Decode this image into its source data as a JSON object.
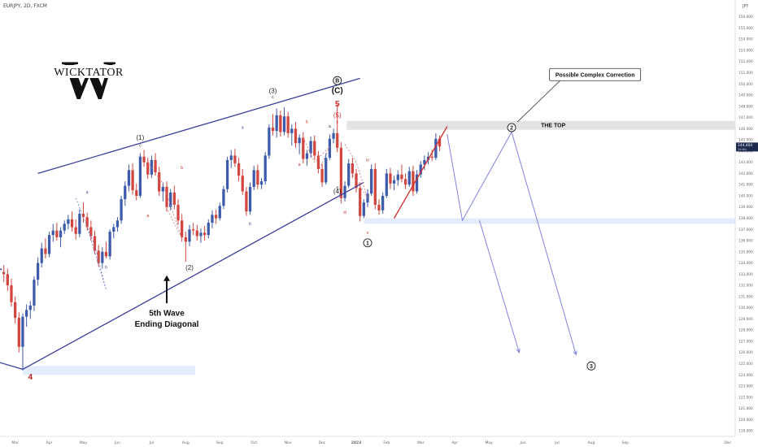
{
  "header": {
    "symbol_line": "EURJPY, 2D, FXCM",
    "currency": "JPY"
  },
  "logo": {
    "text": "WICKTATOR",
    "monogram": "W"
  },
  "chart_data": {
    "type": "candlestick",
    "xlabel": "",
    "ylabel": "",
    "ylim": [
      118.5,
      157.5
    ],
    "y_ticks": [
      119,
      120,
      121,
      122,
      123,
      124,
      125,
      126,
      127,
      128,
      129,
      130,
      131,
      132,
      133,
      134,
      135,
      136,
      137,
      138,
      139,
      140,
      141,
      142,
      143,
      144,
      145,
      146,
      147,
      148,
      149,
      150,
      151,
      152,
      153,
      154,
      155,
      156
    ],
    "x_tick_labels": [
      "Mar",
      "Apr",
      "May",
      "Jun",
      "Jul",
      "Aug",
      "Sep",
      "Oct",
      "Nov",
      "Dec",
      "2023",
      "Feb",
      "Mar",
      "Apr",
      "May",
      "Jun",
      "Jul",
      "Aug",
      "Sep",
      "Dec"
    ],
    "x_tick_slots": [
      0,
      18,
      36,
      54,
      72,
      90,
      108,
      126,
      144,
      162,
      180,
      196,
      214,
      232,
      250,
      268,
      286,
      304,
      322,
      376
    ],
    "x_range": [
      -8,
      380
    ],
    "price_marker": {
      "value": "144.404",
      "sub": "34:8h",
      "level": 144.4,
      "color": "#1b2a4e"
    },
    "candles": [
      [
        -6,
        133.2,
        133.8,
        132.3,
        133.0
      ],
      [
        -4,
        133.0,
        133.5,
        131.5,
        132.0
      ],
      [
        -2,
        132.0,
        132.6,
        130.1,
        130.5
      ],
      [
        0,
        130.5,
        131.0,
        128.6,
        129.1
      ],
      [
        2,
        129.1,
        129.6,
        126.0,
        126.5
      ],
      [
        4,
        126.5,
        129.5,
        124.4,
        129.2
      ],
      [
        6,
        129.2,
        130.3,
        128.3,
        129.8
      ],
      [
        8,
        129.8,
        130.6,
        129.0,
        130.2
      ],
      [
        10,
        130.2,
        132.8,
        129.7,
        132.5
      ],
      [
        12,
        132.5,
        134.5,
        132.0,
        134.0
      ],
      [
        14,
        134.0,
        135.8,
        133.6,
        135.3
      ],
      [
        16,
        135.3,
        136.2,
        134.4,
        134.8
      ],
      [
        18,
        134.8,
        136.8,
        134.5,
        136.5
      ],
      [
        20,
        136.5,
        137.5,
        135.9,
        136.9
      ],
      [
        22,
        136.9,
        137.6,
        136.0,
        136.3
      ],
      [
        24,
        136.3,
        137.2,
        135.4,
        136.9
      ],
      [
        26,
        136.9,
        137.8,
        136.6,
        137.5
      ],
      [
        28,
        137.5,
        138.3,
        137.0,
        137.9
      ],
      [
        30,
        137.9,
        138.6,
        136.8,
        137.2
      ],
      [
        32,
        137.2,
        137.9,
        136.1,
        136.6
      ],
      [
        34,
        136.6,
        138.8,
        136.3,
        138.4
      ],
      [
        36,
        138.4,
        139.4,
        137.6,
        138.1
      ],
      [
        38,
        138.1,
        138.5,
        136.9,
        137.2
      ],
      [
        40,
        137.2,
        137.8,
        136.0,
        136.4
      ],
      [
        42,
        136.4,
        136.9,
        134.8,
        135.1
      ],
      [
        44,
        135.1,
        135.6,
        133.7,
        134.0
      ],
      [
        46,
        134.0,
        135.4,
        133.5,
        135.0
      ],
      [
        48,
        135.0,
        135.9,
        134.4,
        134.6
      ],
      [
        50,
        134.6,
        137.0,
        134.3,
        136.8
      ],
      [
        52,
        136.8,
        137.5,
        136.2,
        137.2
      ],
      [
        54,
        137.2,
        138.1,
        136.8,
        137.8
      ],
      [
        56,
        137.8,
        140.0,
        137.5,
        139.7
      ],
      [
        58,
        139.7,
        141.3,
        139.1,
        140.9
      ],
      [
        60,
        140.9,
        142.8,
        140.4,
        142.3
      ],
      [
        62,
        142.3,
        142.9,
        140.1,
        140.5
      ],
      [
        64,
        140.5,
        141.1,
        139.6,
        140.0
      ],
      [
        66,
        140.0,
        143.8,
        139.8,
        143.5
      ],
      [
        68,
        143.5,
        144.1,
        142.6,
        143.0
      ],
      [
        70,
        143.0,
        143.4,
        141.5,
        141.9
      ],
      [
        72,
        141.9,
        143.6,
        141.6,
        143.2
      ],
      [
        74,
        143.2,
        143.8,
        141.8,
        142.1
      ],
      [
        76,
        142.1,
        142.6,
        140.0,
        140.4
      ],
      [
        78,
        140.4,
        141.2,
        139.5,
        140.8
      ],
      [
        80,
        140.8,
        141.3,
        138.6,
        139.0
      ],
      [
        82,
        139.0,
        140.6,
        138.7,
        140.3
      ],
      [
        84,
        140.3,
        140.9,
        138.8,
        139.2
      ],
      [
        86,
        139.2,
        139.7,
        137.4,
        137.8
      ],
      [
        88,
        137.8,
        138.4,
        135.9,
        136.3
      ],
      [
        90,
        136.3,
        136.8,
        134.1,
        135.9
      ],
      [
        92,
        135.9,
        137.4,
        135.5,
        137.0
      ],
      [
        94,
        137.0,
        137.6,
        136.5,
        136.9
      ],
      [
        96,
        136.9,
        137.4,
        136.0,
        136.4
      ],
      [
        98,
        136.4,
        137.1,
        135.8,
        136.7
      ],
      [
        100,
        136.7,
        137.3,
        136.0,
        136.5
      ],
      [
        102,
        136.5,
        137.9,
        136.2,
        137.6
      ],
      [
        104,
        137.6,
        138.7,
        137.1,
        138.3
      ],
      [
        106,
        138.3,
        138.8,
        137.5,
        138.0
      ],
      [
        108,
        138.0,
        139.4,
        137.8,
        139.1
      ],
      [
        110,
        139.1,
        140.9,
        138.8,
        140.6
      ],
      [
        112,
        140.6,
        143.5,
        140.3,
        143.2
      ],
      [
        114,
        143.2,
        144.1,
        142.5,
        143.6
      ],
      [
        116,
        143.6,
        144.2,
        142.6,
        142.9
      ],
      [
        118,
        142.9,
        143.4,
        141.3,
        141.8
      ],
      [
        120,
        141.8,
        142.4,
        140.1,
        140.4
      ],
      [
        122,
        140.4,
        140.8,
        138.2,
        138.6
      ],
      [
        124,
        138.6,
        141.2,
        138.3,
        140.8
      ],
      [
        126,
        140.8,
        142.7,
        140.5,
        142.3
      ],
      [
        128,
        142.3,
        142.8,
        140.6,
        141.0
      ],
      [
        130,
        141.0,
        141.6,
        140.6,
        141.3
      ],
      [
        132,
        141.3,
        143.9,
        141.0,
        143.6
      ],
      [
        134,
        143.6,
        146.4,
        143.3,
        146.1
      ],
      [
        136,
        146.1,
        147.3,
        145.4,
        145.8
      ],
      [
        138,
        145.8,
        147.8,
        145.2,
        147.2
      ],
      [
        140,
        147.2,
        147.6,
        145.3,
        145.7
      ],
      [
        142,
        145.7,
        147.9,
        145.4,
        147.1
      ],
      [
        144,
        147.1,
        147.5,
        145.2,
        145.6
      ],
      [
        146,
        145.6,
        146.4,
        144.5,
        146.0
      ],
      [
        148,
        146.0,
        146.6,
        144.3,
        144.7
      ],
      [
        150,
        144.7,
        145.5,
        143.7,
        145.2
      ],
      [
        152,
        145.2,
        145.7,
        142.9,
        143.3
      ],
      [
        154,
        143.3,
        144.1,
        142.7,
        143.8
      ],
      [
        156,
        143.8,
        145.3,
        143.4,
        144.9
      ],
      [
        158,
        144.9,
        145.4,
        143.2,
        143.6
      ],
      [
        160,
        143.6,
        144.0,
        142.0,
        142.4
      ],
      [
        162,
        142.4,
        142.9,
        140.8,
        141.2
      ],
      [
        164,
        141.2,
        143.8,
        141.0,
        143.4
      ],
      [
        166,
        143.4,
        145.5,
        143.2,
        145.1
      ],
      [
        168,
        145.1,
        146.0,
        144.7,
        145.6
      ],
      [
        170,
        145.6,
        148.2,
        143.9,
        144.3
      ],
      [
        172,
        144.3,
        144.8,
        139.3,
        139.8
      ],
      [
        174,
        139.8,
        141.3,
        139.5,
        140.9
      ],
      [
        176,
        140.9,
        143.3,
        140.7,
        142.9
      ],
      [
        178,
        142.9,
        143.4,
        141.6,
        142.0
      ],
      [
        180,
        142.0,
        142.4,
        140.3,
        140.7
      ],
      [
        182,
        140.7,
        141.2,
        137.7,
        138.2
      ],
      [
        184,
        138.2,
        139.7,
        138.0,
        139.4
      ],
      [
        186,
        139.4,
        140.6,
        139.0,
        140.2
      ],
      [
        188,
        140.2,
        142.8,
        140.0,
        142.4
      ],
      [
        190,
        142.4,
        142.9,
        138.8,
        139.2
      ],
      [
        192,
        139.2,
        139.7,
        138.3,
        138.7
      ],
      [
        194,
        138.7,
        140.3,
        138.4,
        140.0
      ],
      [
        196,
        140.0,
        142.4,
        139.8,
        142.0
      ],
      [
        198,
        142.0,
        142.5,
        140.6,
        141.1
      ],
      [
        200,
        141.1,
        141.8,
        140.5,
        141.4
      ],
      [
        202,
        141.4,
        142.3,
        140.9,
        141.9
      ],
      [
        204,
        141.9,
        142.8,
        141.2,
        141.5
      ],
      [
        206,
        141.5,
        142.0,
        140.6,
        141.0
      ],
      [
        208,
        141.0,
        142.6,
        140.8,
        142.2
      ],
      [
        210,
        142.2,
        142.7,
        140.0,
        140.4
      ],
      [
        212,
        140.4,
        142.3,
        140.2,
        141.9
      ],
      [
        214,
        141.9,
        143.1,
        141.6,
        142.8
      ],
      [
        216,
        142.8,
        143.6,
        142.3,
        143.2
      ],
      [
        218,
        143.2,
        143.9,
        142.8,
        143.5
      ],
      [
        220,
        143.5,
        144.1,
        143.1,
        143.4
      ],
      [
        222,
        143.4,
        145.6,
        143.2,
        145.1
      ],
      [
        224,
        145.1,
        145.4,
        144.0,
        144.4
      ]
    ],
    "channel_lines": [
      {
        "from": [
          12,
          142.0
        ],
        "to": [
          182,
          150.5
        ],
        "color": "#3b3f9c"
      },
      {
        "from": [
          4,
          124.5
        ],
        "to": [
          184,
          141.2
        ],
        "color": "#3b3f9c"
      },
      {
        "from": [
          -10,
          125.2
        ],
        "to": [
          4,
          124.5
        ],
        "color": "#3b3f9c"
      },
      {
        "from": [
          -10,
          133.6
        ],
        "to": [
          -7,
          133.4
        ],
        "color": "#3b3f9c"
      }
    ],
    "red_trendline": {
      "from": [
        200,
        138.0
      ],
      "to": [
        228,
        146.2
      ],
      "color": "#d42a2a"
    },
    "top_zone": {
      "label": "THE TOP",
      "from": 145.9,
      "to": 146.7,
      "x_start": 175,
      "color": "#d9d9dc"
    },
    "support_zone": {
      "from": 137.5,
      "to": 138.0,
      "x_start": 184,
      "color": "#e3ecfb"
    },
    "base_zone": {
      "from": 124.0,
      "to": 124.8,
      "x_start": 4,
      "x_end": 95,
      "color": "#e3ecfb"
    },
    "projection_paths": [
      {
        "points": [
          [
            228,
            145.5
          ],
          [
            236,
            137.8
          ],
          [
            262,
            145.7
          ],
          [
            296,
            125.8
          ]
        ],
        "color": "#8284e0"
      },
      {
        "points": [
          [
            245,
            137.8
          ],
          [
            266,
            126.0
          ]
        ],
        "color": "#8284e0"
      }
    ],
    "dashed_paths": [
      {
        "points": [
          [
            32,
            139.8
          ],
          [
            42,
            135.6
          ],
          [
            48,
            131.6
          ],
          [
            38,
            137.2
          ]
        ],
        "color": "#7a7fc6"
      },
      {
        "points": [
          [
            70,
            143.0
          ],
          [
            78,
            141.1
          ],
          [
            88,
            136.2
          ],
          [
            80,
            138.9
          ]
        ],
        "color": "#d07a7a"
      },
      {
        "points": [
          [
            152,
            145.2
          ],
          [
            158,
            143.0
          ],
          [
            166,
            144.4
          ],
          [
            160,
            142.2
          ]
        ],
        "color": "#d07a7a"
      },
      {
        "points": [
          [
            174,
            144.6
          ],
          [
            180,
            143.0
          ],
          [
            186,
            139.8
          ],
          [
            178,
            141.9
          ]
        ],
        "color": "#d07a7a"
      }
    ],
    "annotations": [
      {
        "text": "(1)",
        "x": 66,
        "y": 145.0,
        "color": "#222222",
        "size": 8
      },
      {
        "text": "(2)",
        "x": 92,
        "y": 133.4,
        "color": "#222222",
        "size": 8
      },
      {
        "text": "(3)",
        "x": 136,
        "y": 149.2,
        "color": "#222222",
        "size": 8
      },
      {
        "text": "(4)",
        "x": 170,
        "y": 140.2,
        "color": "#222222",
        "size": 8
      },
      {
        "text": "(5)",
        "x": 170,
        "y": 147.0,
        "color": "#d42a2a",
        "size": 8
      },
      {
        "text": "5",
        "x": 170,
        "y": 148.0,
        "color": "#d42a2a",
        "size": 10,
        "bold": true
      },
      {
        "text": "(C)",
        "x": 170,
        "y": 149.2,
        "color": "#111111",
        "size": 10,
        "bold": true
      },
      {
        "text": "4",
        "x": 8,
        "y": 123.6,
        "color": "#c0201e",
        "size": 10,
        "bold": true
      },
      {
        "text": "5th Wave",
        "x": 80,
        "y": 129.3,
        "color": "#111111",
        "size": 10,
        "bold": true
      },
      {
        "text": "Ending Diagonal",
        "x": 80,
        "y": 128.3,
        "color": "#111111",
        "size": 10,
        "bold": true
      },
      {
        "text": "c",
        "x": 66,
        "y": 144.4,
        "color": "#222222",
        "size": 5
      },
      {
        "text": "b",
        "x": 48,
        "y": 133.5,
        "color": "#3b3f9c",
        "size": 5
      },
      {
        "text": "a",
        "x": 38,
        "y": 140.2,
        "color": "#3b3f9c",
        "size": 5
      },
      {
        "text": "a",
        "x": 70,
        "y": 138.1,
        "color": "#c0201e",
        "size": 5
      },
      {
        "text": "b",
        "x": 88,
        "y": 142.4,
        "color": "#c0201e",
        "size": 5
      },
      {
        "text": "a",
        "x": 120,
        "y": 146.0,
        "color": "#3b3f9c",
        "size": 5
      },
      {
        "text": "b",
        "x": 124,
        "y": 137.4,
        "color": "#3b3f9c",
        "size": 5
      },
      {
        "text": "c",
        "x": 136,
        "y": 148.7,
        "color": "#222222",
        "size": 5
      },
      {
        "text": "a",
        "x": 150,
        "y": 142.7,
        "color": "#c0201e",
        "size": 5
      },
      {
        "text": "b",
        "x": 154,
        "y": 146.5,
        "color": "#c0201e",
        "size": 5
      },
      {
        "text": "c",
        "x": 170,
        "y": 146.5,
        "color": "#c0201e",
        "size": 5
      },
      {
        "text": "a",
        "x": 166,
        "y": 146.1,
        "color": "#222222",
        "size": 5
      },
      {
        "text": "e",
        "x": 170,
        "y": 140.6,
        "color": "#222222",
        "size": 5
      },
      {
        "text": "iv",
        "x": 186,
        "y": 143.1,
        "color": "#c0201e",
        "size": 5
      },
      {
        "text": "iii",
        "x": 174,
        "y": 138.4,
        "color": "#c0201e",
        "size": 5
      },
      {
        "text": "v",
        "x": 186,
        "y": 136.6,
        "color": "#c0201e",
        "size": 5
      }
    ],
    "circled_labels": [
      {
        "text": "B",
        "x": 170,
        "y": 150.3,
        "color": "#111111"
      },
      {
        "text": "1",
        "x": 186,
        "y": 135.8,
        "color": "#222222"
      },
      {
        "text": "2",
        "x": 262,
        "y": 146.1,
        "color": "#222222"
      },
      {
        "text": "3",
        "x": 304,
        "y": 124.8,
        "color": "#222222"
      }
    ],
    "callout": {
      "text": "Possible Complex Correction",
      "x": 282,
      "y": 150.8,
      "pointer": [
        265,
        146.6
      ]
    },
    "up_arrow": {
      "x": 80,
      "y_from": 130.4,
      "y_to": 132.9
    }
  }
}
